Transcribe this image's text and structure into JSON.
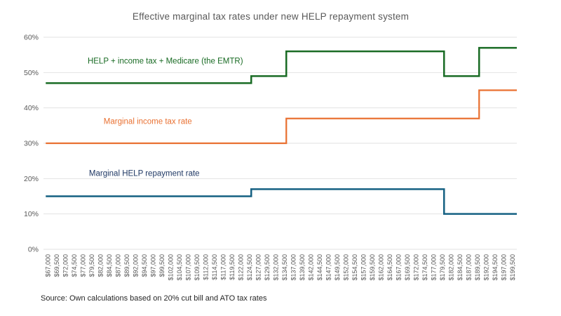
{
  "title": "Effective marginal tax rates under new HELP repayment system",
  "source": "Source: Own calculations based on 20% cut bill and ATO tax rates",
  "chart_data": {
    "type": "line",
    "subtype": "step",
    "title": "Effective marginal tax rates under new HELP repayment system",
    "xlabel": "",
    "ylabel": "",
    "ylim": [
      0,
      60
    ],
    "ytick_step": 10,
    "ytick_suffix": "%",
    "x_tick_prefix": "$",
    "grid": true,
    "legend_position": "inline-labels",
    "categories": [
      67000,
      69500,
      72000,
      74500,
      77000,
      79500,
      82000,
      84500,
      87000,
      89500,
      92000,
      94500,
      97000,
      99500,
      102000,
      104500,
      107000,
      109500,
      112000,
      114500,
      117000,
      119500,
      122000,
      124500,
      127000,
      129500,
      132000,
      134500,
      137000,
      139500,
      142000,
      144500,
      147000,
      149500,
      152000,
      154500,
      157000,
      159500,
      162000,
      164500,
      167000,
      169500,
      172000,
      174500,
      177000,
      179500,
      182000,
      184500,
      187000,
      189500,
      192000,
      194500,
      197000,
      199500
    ],
    "series": [
      {
        "name": "HELP + income tax + Medicare (the EMTR)",
        "color": "#196b24",
        "stroke_width": 2.5,
        "step_points": [
          [
            67000,
            47
          ],
          [
            125000,
            49
          ],
          [
            135000,
            56
          ],
          [
            180000,
            49
          ],
          [
            190000,
            57
          ]
        ]
      },
      {
        "name": "Marginal income tax rate",
        "color": "#e97132",
        "stroke_width": 2.25,
        "step_points": [
          [
            67000,
            30
          ],
          [
            135000,
            37
          ],
          [
            190000,
            45
          ]
        ]
      },
      {
        "name": "Marginal HELP repayment rate",
        "color": "#156082",
        "stroke_width": 2.5,
        "step_points": [
          [
            67000,
            15
          ],
          [
            125000,
            17
          ],
          [
            180000,
            10
          ]
        ]
      }
    ],
    "annotations": [
      {
        "text": "HELP + income tax + Medicare (the EMTR)",
        "color": "#196b24",
        "income": 100500,
        "pct": 53.3
      },
      {
        "text": "Marginal income tax rate",
        "color": "#e97132",
        "income": 95500,
        "pct": 36.3
      },
      {
        "text": "Marginal HELP repayment rate",
        "color": "#1f3864",
        "income": 94500,
        "pct": 21.6
      }
    ],
    "colors": {
      "gridline": "#e2e2e2",
      "axis_text": "#595959",
      "title_text": "#595959"
    }
  }
}
